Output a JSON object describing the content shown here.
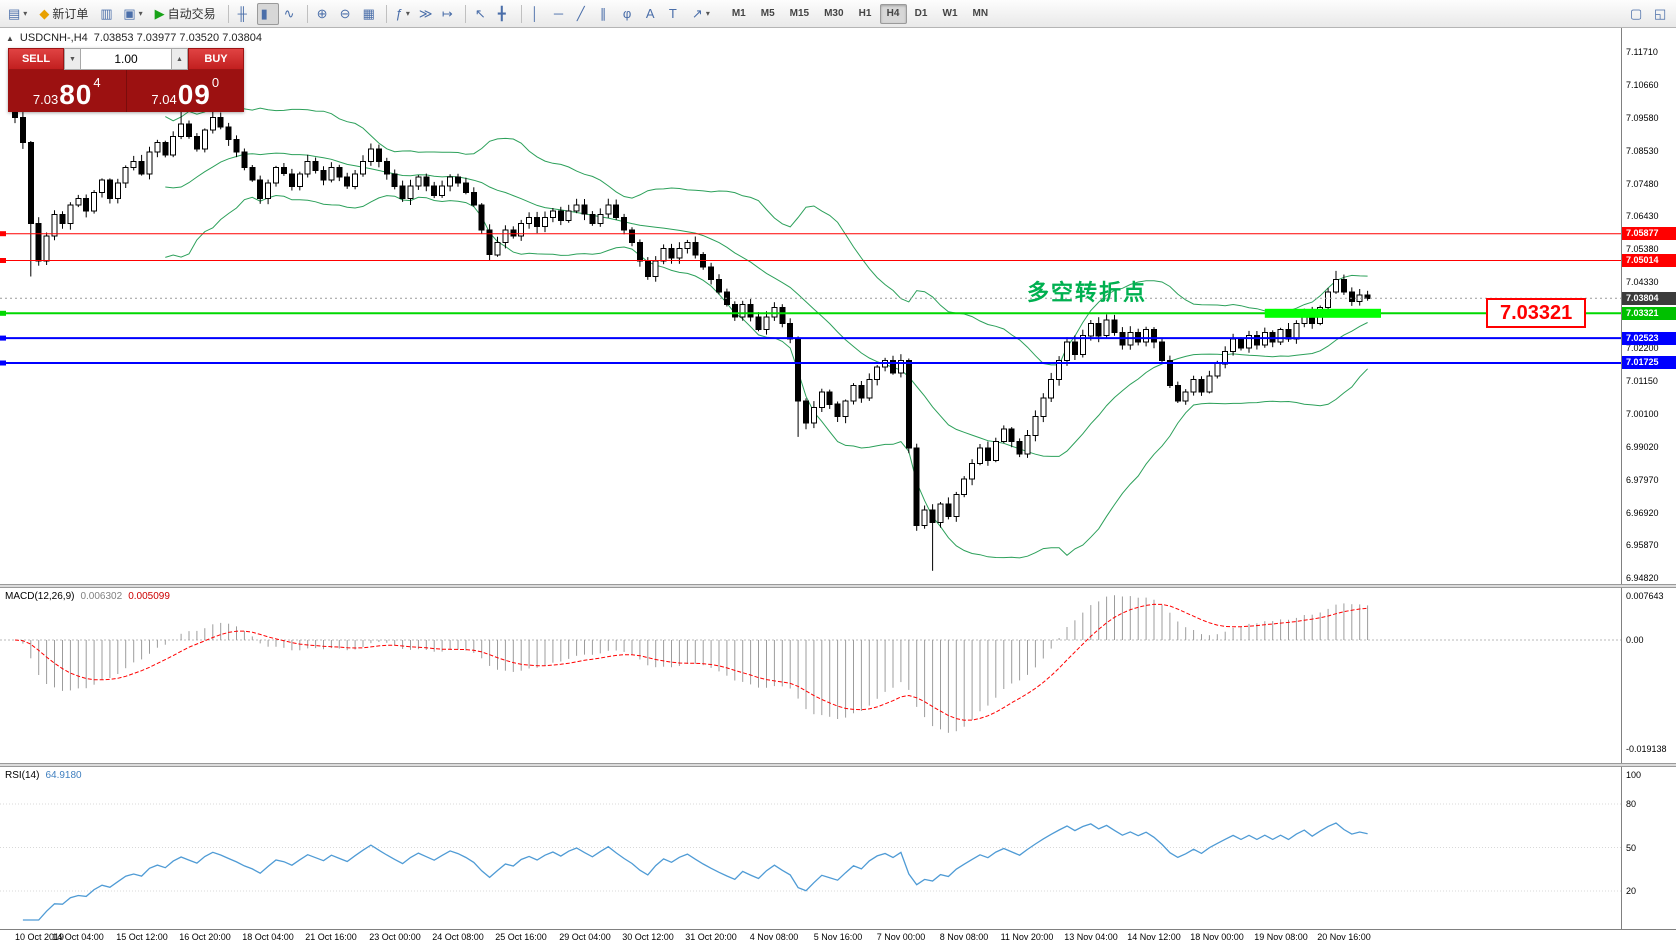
{
  "toolbar": {
    "items": [
      {
        "name": "new-chart-button",
        "glyph": "▤",
        "caret": true
      },
      {
        "name": "new-order-button",
        "glyph": "◆",
        "glyph_color": "#e8a000",
        "label": "新订单"
      },
      {
        "name": "market-watch-button",
        "glyph": "▥"
      },
      {
        "name": "profiles-button",
        "glyph": "▣",
        "caret": true
      },
      {
        "name": "autotrade-button",
        "glyph": "▶",
        "glyph_color": "#18a318",
        "label": "自动交易"
      },
      {
        "sep": true
      },
      {
        "name": "bar-chart-button",
        "glyph": "╫"
      },
      {
        "name": "candlestick-chart-button",
        "glyph": "▮",
        "active": true
      },
      {
        "name": "line-chart-button",
        "glyph": "∿"
      },
      {
        "sep": true
      },
      {
        "name": "zoom-in-button",
        "glyph": "⊕"
      },
      {
        "name": "zoom-out-button",
        "glyph": "⊖"
      },
      {
        "name": "tile-windows-button",
        "glyph": "▦"
      },
      {
        "sep": true
      },
      {
        "name": "indicators-button",
        "glyph": "ƒ",
        "caret": true
      },
      {
        "name": "auto-scroll-button",
        "glyph": "≫"
      },
      {
        "name": "chart-shift-button",
        "glyph": "↦"
      },
      {
        "sep": true
      },
      {
        "name": "cursor-button",
        "glyph": "↖"
      },
      {
        "name": "crosshair-button",
        "glyph": "╋"
      },
      {
        "sep": true
      },
      {
        "name": "vertical-line-button",
        "glyph": "│"
      },
      {
        "name": "horizontal-line-button",
        "glyph": "─"
      },
      {
        "name": "trendline-button",
        "glyph": "╱"
      },
      {
        "name": "channel-button",
        "glyph": "∥"
      },
      {
        "name": "fibonacci-button",
        "glyph": "φ"
      },
      {
        "name": "text-button",
        "glyph": "A"
      },
      {
        "name": "label-button",
        "glyph": "T"
      },
      {
        "name": "arrows-button",
        "glyph": "↗",
        "caret": true
      }
    ],
    "timeframes": [
      "M1",
      "M5",
      "M15",
      "M30",
      "H1",
      "H4",
      "D1",
      "W1",
      "MN"
    ],
    "active_timeframe": "H4",
    "right_items": [
      {
        "name": "depth-of-market-button",
        "glyph": "▢"
      },
      {
        "name": "popup-prices-button",
        "glyph": "◱"
      }
    ]
  },
  "header": {
    "collapse_icon": "▲",
    "symbol": "USDCNH-,H4",
    "ohlc": "7.03853 7.03977 7.03520 7.03804"
  },
  "trade_panel": {
    "sell_label": "SELL",
    "buy_label": "BUY",
    "volume": "1.00",
    "spin_down": "▼",
    "spin_up": "▲",
    "sell_price_main": "7.03",
    "sell_price_pips": "80",
    "sell_price_pt": "4",
    "buy_price_main": "7.04",
    "buy_price_pips": "09",
    "buy_price_pt": "0"
  },
  "price_box": {
    "text": "7.03321"
  },
  "annotation": {
    "text": "多空转折点",
    "color": "#00B050",
    "index": 128,
    "price": 7.0365
  },
  "chart_data": {
    "type": "candlestick",
    "symbol": "USDCNH-",
    "timeframe": "H4",
    "ohlc_display": {
      "open": "7.03853",
      "high": "7.03977",
      "low": "7.03520",
      "close": "7.03804"
    },
    "price_top": 7.1171,
    "price_bottom": 6.9482,
    "y_ticks": [
      "7.11710",
      "7.10660",
      "7.09580",
      "7.08530",
      "7.07480",
      "7.06430",
      "7.05380",
      "7.04330",
      "7.03280",
      "7.02200",
      "7.01150",
      "7.00100",
      "6.99020",
      "6.97970",
      "6.96920",
      "6.95870",
      "6.94820"
    ],
    "x_labels": [
      "10 Oct 2019",
      "14 Oct 04:00",
      "15 Oct 12:00",
      "16 Oct 20:00",
      "18 Oct 04:00",
      "21 Oct 16:00",
      "23 Oct 00:00",
      "24 Oct 08:00",
      "25 Oct 16:00",
      "29 Oct 04:00",
      "30 Oct 12:00",
      "31 Oct 20:00",
      "4 Nov 08:00",
      "5 Nov 16:00",
      "7 Nov 00:00",
      "8 Nov 08:00",
      "11 Nov 20:00",
      "13 Nov 04:00",
      "14 Nov 12:00",
      "18 Nov 00:00",
      "19 Nov 08:00",
      "20 Nov 16:00"
    ],
    "candles_per_label": 8,
    "first_open": 7.0995,
    "closes": [
      7.096,
      7.088,
      7.062,
      7.05,
      7.058,
      7.065,
      7.062,
      7.068,
      7.07,
      7.066,
      7.072,
      7.076,
      7.07,
      7.075,
      7.08,
      7.082,
      7.078,
      7.085,
      7.088,
      7.084,
      7.09,
      7.094,
      7.09,
      7.086,
      7.092,
      7.096,
      7.093,
      7.089,
      7.085,
      7.08,
      7.076,
      7.07,
      7.075,
      7.08,
      7.078,
      7.074,
      7.078,
      7.082,
      7.079,
      7.076,
      7.08,
      7.077,
      7.074,
      7.078,
      7.082,
      7.086,
      7.082,
      7.078,
      7.074,
      7.07,
      7.074,
      7.077,
      7.074,
      7.071,
      7.074,
      7.077,
      7.075,
      7.072,
      7.068,
      7.06,
      7.052,
      7.056,
      7.06,
      7.058,
      7.062,
      7.064,
      7.061,
      7.064,
      7.066,
      7.063,
      7.066,
      7.068,
      7.065,
      7.062,
      7.065,
      7.068,
      7.064,
      7.06,
      7.056,
      7.05,
      7.045,
      7.05,
      7.054,
      7.051,
      7.054,
      7.056,
      7.052,
      7.048,
      7.044,
      7.04,
      7.036,
      7.032,
      7.036,
      7.032,
      7.028,
      7.032,
      7.035,
      7.03,
      7.025,
      7.005,
      6.998,
      7.003,
      7.008,
      7.004,
      7.0,
      7.005,
      7.01,
      7.006,
      7.012,
      7.016,
      7.018,
      7.014,
      7.018,
      6.99,
      6.965,
      6.97,
      6.966,
      6.972,
      6.968,
      6.975,
      6.98,
      6.985,
      6.99,
      6.986,
      6.992,
      6.996,
      6.992,
      6.988,
      6.994,
      7.0,
      7.006,
      7.012,
      7.018,
      7.024,
      7.02,
      7.026,
      7.03,
      7.026,
      7.031,
      7.027,
      7.023,
      7.027,
      7.024,
      7.028,
      7.024,
      7.018,
      7.01,
      7.005,
      7.008,
      7.012,
      7.008,
      7.013,
      7.017,
      7.021,
      7.025,
      7.022,
      7.026,
      7.023,
      7.027,
      7.024,
      7.028,
      7.025,
      7.03,
      7.034,
      7.03,
      7.035,
      7.04,
      7.044,
      7.04,
      7.037,
      7.039,
      7.038
    ],
    "long_wicks": {
      "2": {
        "low": 7.045
      },
      "21": {
        "high": 7.1005
      },
      "25": {
        "high": 7.0985
      },
      "99": {
        "low": 6.9935
      },
      "116": {
        "low": 6.9505
      },
      "167": {
        "high": 7.0468
      }
    },
    "colors": {
      "bull": "#ffffff",
      "bear": "#000000",
      "outline": "#000000",
      "bollinger": "#2ca05a",
      "macd_hist": "#9c9c9c",
      "macd_signal": "#ff0000",
      "rsi_line": "#4f9bd5"
    },
    "hlines": [
      {
        "price": 7.05877,
        "color": "#ff0000",
        "width": 1,
        "tag_bg": "#ff0000",
        "label": "7.05877"
      },
      {
        "price": 7.05014,
        "color": "#ff0000",
        "width": 1,
        "tag_bg": "#ff0000",
        "label": "7.05014"
      },
      {
        "price": 7.03321,
        "color": "#00d800",
        "width": 2,
        "tag_bg": "#00c000",
        "label": "7.03321"
      },
      {
        "price": 7.02523,
        "color": "#0000ff",
        "width": 2,
        "tag_bg": "#0000ff",
        "label": "7.02523"
      },
      {
        "price": 7.01725,
        "color": "#0000ff",
        "width": 2,
        "tag_bg": "#0000ff",
        "label": "7.01725"
      }
    ],
    "thick_segment": {
      "price": 7.03321,
      "from_index": 158,
      "to_x": 1381,
      "color": "#00ff00",
      "height": 9
    },
    "current_price": {
      "value": 7.03804,
      "label": "7.03804",
      "tag_bg": "#3c3c3c"
    },
    "indicators": {
      "bollinger": {
        "name": "Bollinger Bands",
        "period": 20,
        "deviation": 2
      },
      "macd": {
        "name": "MACD(12,26,9)",
        "value_main": "0.006302",
        "value_signal": "0.005099",
        "ticks": [
          "0.007643",
          "0.00",
          "-0.019138"
        ]
      },
      "rsi": {
        "name": "RSI(14)",
        "value": "64.9180",
        "ticks": [
          "100",
          "80",
          "50",
          "20"
        ],
        "levels": [
          80,
          50,
          20
        ]
      }
    }
  }
}
